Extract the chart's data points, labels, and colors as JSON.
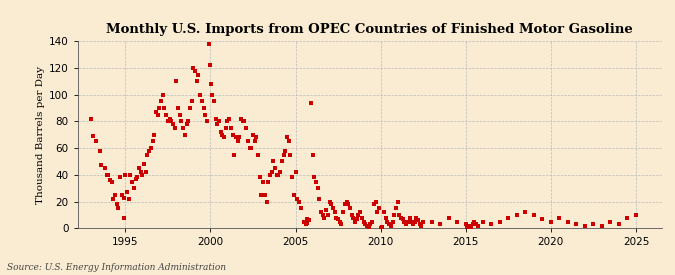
{
  "title": "Monthly U.S. Imports from OPEC Countries of Finished Motor Gasoline",
  "ylabel": "Thousand Barrels per Day",
  "source": "Source: U.S. Energy Information Administration",
  "background_color": "#faecd2",
  "marker_color": "#cc0000",
  "marker_size": 6,
  "xlim": [
    1992.2,
    2026.5
  ],
  "ylim": [
    0,
    140
  ],
  "yticks": [
    0,
    20,
    40,
    60,
    80,
    100,
    120,
    140
  ],
  "xticks": [
    1995,
    2000,
    2005,
    2010,
    2015,
    2020,
    2025
  ],
  "data": [
    [
      1993.0,
      82
    ],
    [
      1993.1,
      69
    ],
    [
      1993.3,
      65
    ],
    [
      1993.5,
      58
    ],
    [
      1993.6,
      47
    ],
    [
      1993.8,
      45
    ],
    [
      1993.9,
      40
    ],
    [
      1994.0,
      40
    ],
    [
      1994.1,
      36
    ],
    [
      1994.2,
      35
    ],
    [
      1994.3,
      22
    ],
    [
      1994.4,
      25
    ],
    [
      1994.5,
      18
    ],
    [
      1994.6,
      15
    ],
    [
      1994.7,
      38
    ],
    [
      1994.8,
      25
    ],
    [
      1994.9,
      23
    ],
    [
      1994.95,
      8
    ],
    [
      1995.0,
      40
    ],
    [
      1995.1,
      27
    ],
    [
      1995.2,
      22
    ],
    [
      1995.3,
      40
    ],
    [
      1995.4,
      35
    ],
    [
      1995.5,
      30
    ],
    [
      1995.6,
      37
    ],
    [
      1995.7,
      38
    ],
    [
      1995.8,
      45
    ],
    [
      1995.9,
      42
    ],
    [
      1996.0,
      40
    ],
    [
      1996.1,
      48
    ],
    [
      1996.2,
      42
    ],
    [
      1996.3,
      55
    ],
    [
      1996.4,
      58
    ],
    [
      1996.5,
      60
    ],
    [
      1996.6,
      65
    ],
    [
      1996.7,
      70
    ],
    [
      1996.8,
      87
    ],
    [
      1996.9,
      85
    ],
    [
      1997.0,
      90
    ],
    [
      1997.1,
      95
    ],
    [
      1997.2,
      100
    ],
    [
      1997.3,
      90
    ],
    [
      1997.4,
      85
    ],
    [
      1997.5,
      80
    ],
    [
      1997.6,
      82
    ],
    [
      1997.7,
      80
    ],
    [
      1997.8,
      78
    ],
    [
      1997.9,
      75
    ],
    [
      1998.0,
      110
    ],
    [
      1998.1,
      90
    ],
    [
      1998.2,
      85
    ],
    [
      1998.3,
      80
    ],
    [
      1998.4,
      75
    ],
    [
      1998.5,
      70
    ],
    [
      1998.6,
      78
    ],
    [
      1998.7,
      80
    ],
    [
      1998.8,
      90
    ],
    [
      1998.9,
      95
    ],
    [
      1999.0,
      120
    ],
    [
      1999.1,
      118
    ],
    [
      1999.2,
      110
    ],
    [
      1999.3,
      115
    ],
    [
      1999.4,
      100
    ],
    [
      1999.5,
      95
    ],
    [
      1999.6,
      90
    ],
    [
      1999.7,
      85
    ],
    [
      1999.8,
      80
    ],
    [
      1999.9,
      138
    ],
    [
      2000.0,
      122
    ],
    [
      2000.05,
      108
    ],
    [
      2000.1,
      100
    ],
    [
      2000.2,
      95
    ],
    [
      2000.3,
      82
    ],
    [
      2000.4,
      78
    ],
    [
      2000.5,
      80
    ],
    [
      2000.6,
      72
    ],
    [
      2000.7,
      70
    ],
    [
      2000.8,
      68
    ],
    [
      2000.9,
      75
    ],
    [
      2001.0,
      80
    ],
    [
      2001.1,
      82
    ],
    [
      2001.2,
      75
    ],
    [
      2001.3,
      70
    ],
    [
      2001.4,
      55
    ],
    [
      2001.5,
      68
    ],
    [
      2001.6,
      65
    ],
    [
      2001.7,
      68
    ],
    [
      2001.8,
      82
    ],
    [
      2001.9,
      80
    ],
    [
      2002.0,
      80
    ],
    [
      2002.1,
      75
    ],
    [
      2002.2,
      65
    ],
    [
      2002.3,
      60
    ],
    [
      2002.4,
      60
    ],
    [
      2002.5,
      70
    ],
    [
      2002.6,
      65
    ],
    [
      2002.7,
      68
    ],
    [
      2002.8,
      55
    ],
    [
      2002.9,
      38
    ],
    [
      2003.0,
      25
    ],
    [
      2003.1,
      35
    ],
    [
      2003.2,
      25
    ],
    [
      2003.3,
      20
    ],
    [
      2003.4,
      35
    ],
    [
      2003.5,
      40
    ],
    [
      2003.6,
      42
    ],
    [
      2003.7,
      50
    ],
    [
      2003.8,
      45
    ],
    [
      2003.9,
      40
    ],
    [
      2004.0,
      40
    ],
    [
      2004.1,
      42
    ],
    [
      2004.2,
      50
    ],
    [
      2004.3,
      55
    ],
    [
      2004.4,
      58
    ],
    [
      2004.5,
      68
    ],
    [
      2004.6,
      65
    ],
    [
      2004.7,
      55
    ],
    [
      2004.8,
      38
    ],
    [
      2004.9,
      25
    ],
    [
      2005.0,
      42
    ],
    [
      2005.1,
      22
    ],
    [
      2005.2,
      20
    ],
    [
      2005.3,
      15
    ],
    [
      2005.5,
      5
    ],
    [
      2005.6,
      3
    ],
    [
      2005.65,
      4
    ],
    [
      2005.7,
      7
    ],
    [
      2005.8,
      6
    ],
    [
      2005.9,
      94
    ],
    [
      2006.0,
      55
    ],
    [
      2006.1,
      38
    ],
    [
      2006.2,
      35
    ],
    [
      2006.3,
      30
    ],
    [
      2006.4,
      22
    ],
    [
      2006.5,
      12
    ],
    [
      2006.6,
      10
    ],
    [
      2006.7,
      8
    ],
    [
      2006.8,
      14
    ],
    [
      2006.9,
      10
    ],
    [
      2007.0,
      20
    ],
    [
      2007.1,
      18
    ],
    [
      2007.2,
      15
    ],
    [
      2007.3,
      12
    ],
    [
      2007.4,
      8
    ],
    [
      2007.5,
      7
    ],
    [
      2007.6,
      5
    ],
    [
      2007.7,
      3
    ],
    [
      2007.8,
      12
    ],
    [
      2007.9,
      18
    ],
    [
      2008.0,
      20
    ],
    [
      2008.1,
      18
    ],
    [
      2008.2,
      15
    ],
    [
      2008.3,
      10
    ],
    [
      2008.4,
      8
    ],
    [
      2008.5,
      5
    ],
    [
      2008.6,
      7
    ],
    [
      2008.7,
      10
    ],
    [
      2008.8,
      12
    ],
    [
      2008.9,
      8
    ],
    [
      2009.0,
      5
    ],
    [
      2009.1,
      3
    ],
    [
      2009.2,
      2
    ],
    [
      2009.3,
      1
    ],
    [
      2009.4,
      3
    ],
    [
      2009.5,
      5
    ],
    [
      2009.6,
      18
    ],
    [
      2009.7,
      20
    ],
    [
      2009.8,
      12
    ],
    [
      2009.9,
      15
    ],
    [
      2010.0,
      0
    ],
    [
      2010.1,
      1
    ],
    [
      2010.2,
      12
    ],
    [
      2010.3,
      8
    ],
    [
      2010.4,
      5
    ],
    [
      2010.5,
      3
    ],
    [
      2010.6,
      2
    ],
    [
      2010.7,
      5
    ],
    [
      2010.8,
      10
    ],
    [
      2010.9,
      15
    ],
    [
      2011.0,
      20
    ],
    [
      2011.1,
      10
    ],
    [
      2011.2,
      8
    ],
    [
      2011.3,
      7
    ],
    [
      2011.4,
      5
    ],
    [
      2011.5,
      3
    ],
    [
      2011.6,
      5
    ],
    [
      2011.7,
      8
    ],
    [
      2011.8,
      5
    ],
    [
      2011.9,
      3
    ],
    [
      2012.0,
      5
    ],
    [
      2012.1,
      8
    ],
    [
      2012.2,
      6
    ],
    [
      2012.3,
      3
    ],
    [
      2012.4,
      2
    ],
    [
      2012.5,
      5
    ],
    [
      2013.0,
      5
    ],
    [
      2013.5,
      3
    ],
    [
      2014.0,
      8
    ],
    [
      2014.5,
      5
    ],
    [
      2015.0,
      3
    ],
    [
      2015.1,
      0
    ],
    [
      2015.2,
      2
    ],
    [
      2015.3,
      0
    ],
    [
      2015.4,
      3
    ],
    [
      2015.5,
      5
    ],
    [
      2015.6,
      3
    ],
    [
      2015.7,
      2
    ],
    [
      2016.0,
      5
    ],
    [
      2016.5,
      3
    ],
    [
      2017.0,
      5
    ],
    [
      2017.5,
      8
    ],
    [
      2018.0,
      10
    ],
    [
      2018.5,
      12
    ],
    [
      2019.0,
      10
    ],
    [
      2019.5,
      7
    ],
    [
      2020.0,
      5
    ],
    [
      2020.5,
      8
    ],
    [
      2021.0,
      5
    ],
    [
      2021.5,
      3
    ],
    [
      2022.0,
      2
    ],
    [
      2022.5,
      3
    ],
    [
      2023.0,
      2
    ],
    [
      2023.5,
      5
    ],
    [
      2024.0,
      3
    ],
    [
      2024.5,
      8
    ],
    [
      2025.0,
      10
    ]
  ]
}
